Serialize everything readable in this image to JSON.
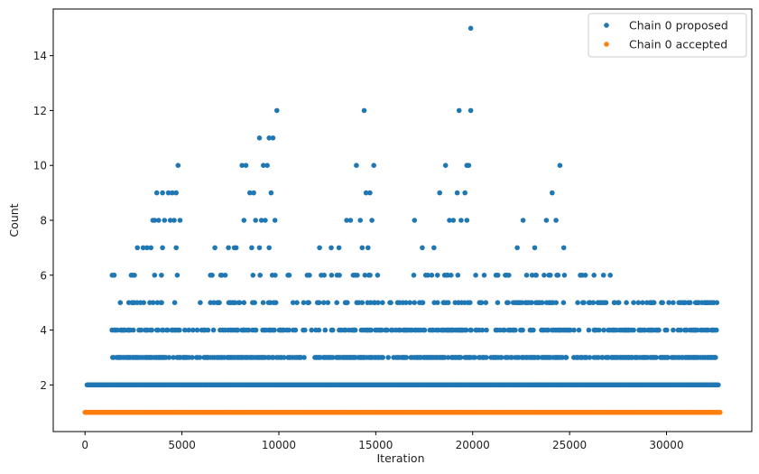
{
  "chart_data": {
    "type": "scatter",
    "title": "",
    "xlabel": "Iteration",
    "ylabel": "Count",
    "xlim": [
      -1640,
      34400
    ],
    "ylim": [
      0.3,
      15.7
    ],
    "xticks": [
      0,
      5000,
      10000,
      15000,
      20000,
      25000,
      30000
    ],
    "yticks": [
      2,
      4,
      6,
      8,
      10,
      12,
      14
    ],
    "grid": false,
    "legend_position": "top-right",
    "series": [
      {
        "name": "Chain 0 proposed",
        "color": "#1f77b4",
        "description_ranges": [
          {
            "y": 2,
            "x_start": 100,
            "x_end": 32700
          },
          {
            "y": 3,
            "x_start": 1300,
            "x_end": 32600
          },
          {
            "y": 4,
            "x_start": 1400,
            "x_end": 32600
          },
          {
            "y": 5,
            "x_start": 1700,
            "x_end": 32600
          },
          {
            "y": 6,
            "x_start": 1400,
            "x_end": 27100
          }
        ],
        "points": [
          [
            1400,
            6
          ],
          [
            2700,
            7
          ],
          [
            3200,
            7
          ],
          [
            3500,
            8
          ],
          [
            3700,
            9
          ],
          [
            4000,
            9
          ],
          [
            4300,
            9
          ],
          [
            4500,
            9
          ],
          [
            4700,
            9
          ],
          [
            4800,
            10
          ],
          [
            3600,
            8
          ],
          [
            3800,
            8
          ],
          [
            4100,
            8
          ],
          [
            4400,
            8
          ],
          [
            4600,
            8
          ],
          [
            4900,
            8
          ],
          [
            3000,
            7
          ],
          [
            3400,
            7
          ],
          [
            4000,
            7
          ],
          [
            4700,
            7
          ],
          [
            6700,
            7
          ],
          [
            7000,
            6
          ],
          [
            7400,
            7
          ],
          [
            7800,
            7
          ],
          [
            8100,
            10
          ],
          [
            8300,
            10
          ],
          [
            8500,
            9
          ],
          [
            8700,
            9
          ],
          [
            9000,
            11
          ],
          [
            9200,
            10
          ],
          [
            9400,
            10
          ],
          [
            9500,
            11
          ],
          [
            9700,
            11
          ],
          [
            9900,
            12
          ],
          [
            8800,
            8
          ],
          [
            9100,
            8
          ],
          [
            9300,
            8
          ],
          [
            9600,
            9
          ],
          [
            9800,
            8
          ],
          [
            8200,
            8
          ],
          [
            7700,
            7
          ],
          [
            8600,
            7
          ],
          [
            9000,
            7
          ],
          [
            9500,
            7
          ],
          [
            12100,
            7
          ],
          [
            12700,
            7
          ],
          [
            13100,
            7
          ],
          [
            13500,
            8
          ],
          [
            13700,
            8
          ],
          [
            14000,
            10
          ],
          [
            14200,
            8
          ],
          [
            14400,
            12
          ],
          [
            14500,
            9
          ],
          [
            14700,
            9
          ],
          [
            14900,
            10
          ],
          [
            14300,
            7
          ],
          [
            14600,
            7
          ],
          [
            14800,
            8
          ],
          [
            17000,
            8
          ],
          [
            17400,
            7
          ],
          [
            18000,
            7
          ],
          [
            18300,
            9
          ],
          [
            18600,
            10
          ],
          [
            18800,
            8
          ],
          [
            19000,
            8
          ],
          [
            19200,
            9
          ],
          [
            19300,
            12
          ],
          [
            19600,
            9
          ],
          [
            19700,
            10
          ],
          [
            19800,
            10
          ],
          [
            19900,
            12
          ],
          [
            19900,
            15
          ],
          [
            19400,
            8
          ],
          [
            19700,
            8
          ],
          [
            21300,
            6
          ],
          [
            22300,
            7
          ],
          [
            22600,
            8
          ],
          [
            23200,
            7
          ],
          [
            23800,
            8
          ],
          [
            24100,
            9
          ],
          [
            24300,
            8
          ],
          [
            24500,
            10
          ],
          [
            24700,
            7
          ],
          [
            26000,
            5
          ],
          [
            26800,
            5
          ],
          [
            27100,
            6
          ],
          [
            27300,
            5
          ],
          [
            28300,
            5
          ],
          [
            29200,
            5
          ],
          [
            29800,
            5
          ],
          [
            31500,
            5
          ],
          [
            32600,
            5
          ],
          [
            26300,
            4
          ],
          [
            27000,
            4
          ],
          [
            28700,
            4
          ],
          [
            29300,
            4
          ],
          [
            31500,
            4
          ],
          [
            32400,
            4
          ]
        ]
      },
      {
        "name": "Chain 0 accepted",
        "color": "#ff7f0e",
        "description_ranges": [
          {
            "y": 1,
            "x_start": 0,
            "x_end": 32767
          }
        ]
      }
    ]
  }
}
